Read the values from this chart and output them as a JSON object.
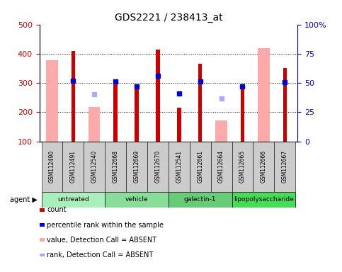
{
  "title": "GDS2221 / 238413_at",
  "samples": [
    "GSM112490",
    "GSM112491",
    "GSM112540",
    "GSM112668",
    "GSM112669",
    "GSM112670",
    "GSM112541",
    "GSM112661",
    "GSM112664",
    "GSM112665",
    "GSM112666",
    "GSM112667"
  ],
  "groups": [
    {
      "name": "untreated",
      "indices": [
        0,
        1,
        2
      ],
      "color": "#aaeebb"
    },
    {
      "name": "vehicle",
      "indices": [
        3,
        4,
        5
      ],
      "color": "#88dd99"
    },
    {
      "name": "galectin-1",
      "indices": [
        6,
        7,
        8
      ],
      "color": "#66cc77"
    },
    {
      "name": "lipopolysaccharide",
      "indices": [
        9,
        10,
        11
      ],
      "color": "#44dd55"
    }
  ],
  "count_values": [
    null,
    410,
    null,
    305,
    283,
    415,
    215,
    365,
    null,
    284,
    null,
    350
  ],
  "count_color": "#cc0000",
  "absent_value_values": [
    378,
    null,
    218,
    null,
    null,
    null,
    null,
    null,
    173,
    null,
    420,
    null
  ],
  "absent_value_color": "#ffaaaa",
  "percentile_rank_values": [
    null,
    308,
    null,
    305,
    288,
    325,
    263,
    305,
    null,
    288,
    null,
    303
  ],
  "percentile_rank_color": "#0000cc",
  "absent_rank_values": [
    null,
    null,
    262,
    null,
    null,
    null,
    null,
    null,
    247,
    null,
    null,
    null
  ],
  "absent_rank_color": "#aaaaff",
  "ylim_left": [
    100,
    500
  ],
  "ylim_right": [
    0,
    100
  ],
  "yticks_left": [
    100,
    200,
    300,
    400,
    500
  ],
  "yticks_right": [
    0,
    25,
    50,
    75,
    100
  ],
  "right_tick_labels": [
    "0",
    "25",
    "50",
    "75",
    "100%"
  ],
  "grid_values": [
    200,
    300,
    400
  ],
  "left_axis_color": "#cc0000",
  "right_axis_color": "#0000cc",
  "background_color": "#ffffff",
  "cell_color": "#cccccc",
  "legend_items": [
    {
      "label": "count",
      "color": "#cc0000"
    },
    {
      "label": "percentile rank within the sample",
      "color": "#0000cc"
    },
    {
      "label": "value, Detection Call = ABSENT",
      "color": "#ffaaaa"
    },
    {
      "label": "rank, Detection Call = ABSENT",
      "color": "#aaaaff"
    }
  ]
}
